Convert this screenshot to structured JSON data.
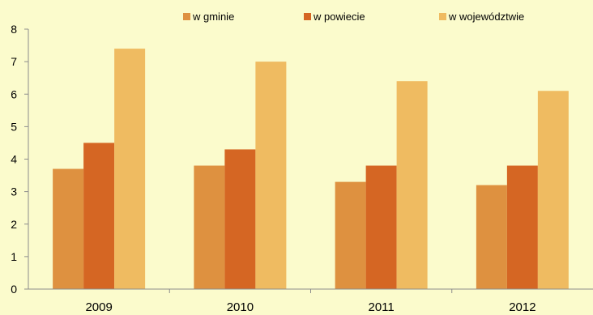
{
  "chart_data": {
    "type": "bar",
    "categories": [
      "2009",
      "2010",
      "2011",
      "2012"
    ],
    "series": [
      {
        "name": "w gminie",
        "values": [
          3.7,
          3.8,
          3.3,
          3.2
        ],
        "color": "#de9140"
      },
      {
        "name": "w powiecie",
        "values": [
          4.5,
          4.3,
          3.8,
          3.8
        ],
        "color": "#d56623"
      },
      {
        "name": "w województwie",
        "values": [
          7.4,
          7.0,
          6.4,
          6.1
        ],
        "color": "#efbb61"
      }
    ],
    "ylim": [
      0,
      8
    ],
    "yticks": [
      0,
      1,
      2,
      3,
      4,
      5,
      6,
      7,
      8
    ],
    "legend_position": "top",
    "grid": false,
    "background": "#fbfbcc"
  }
}
